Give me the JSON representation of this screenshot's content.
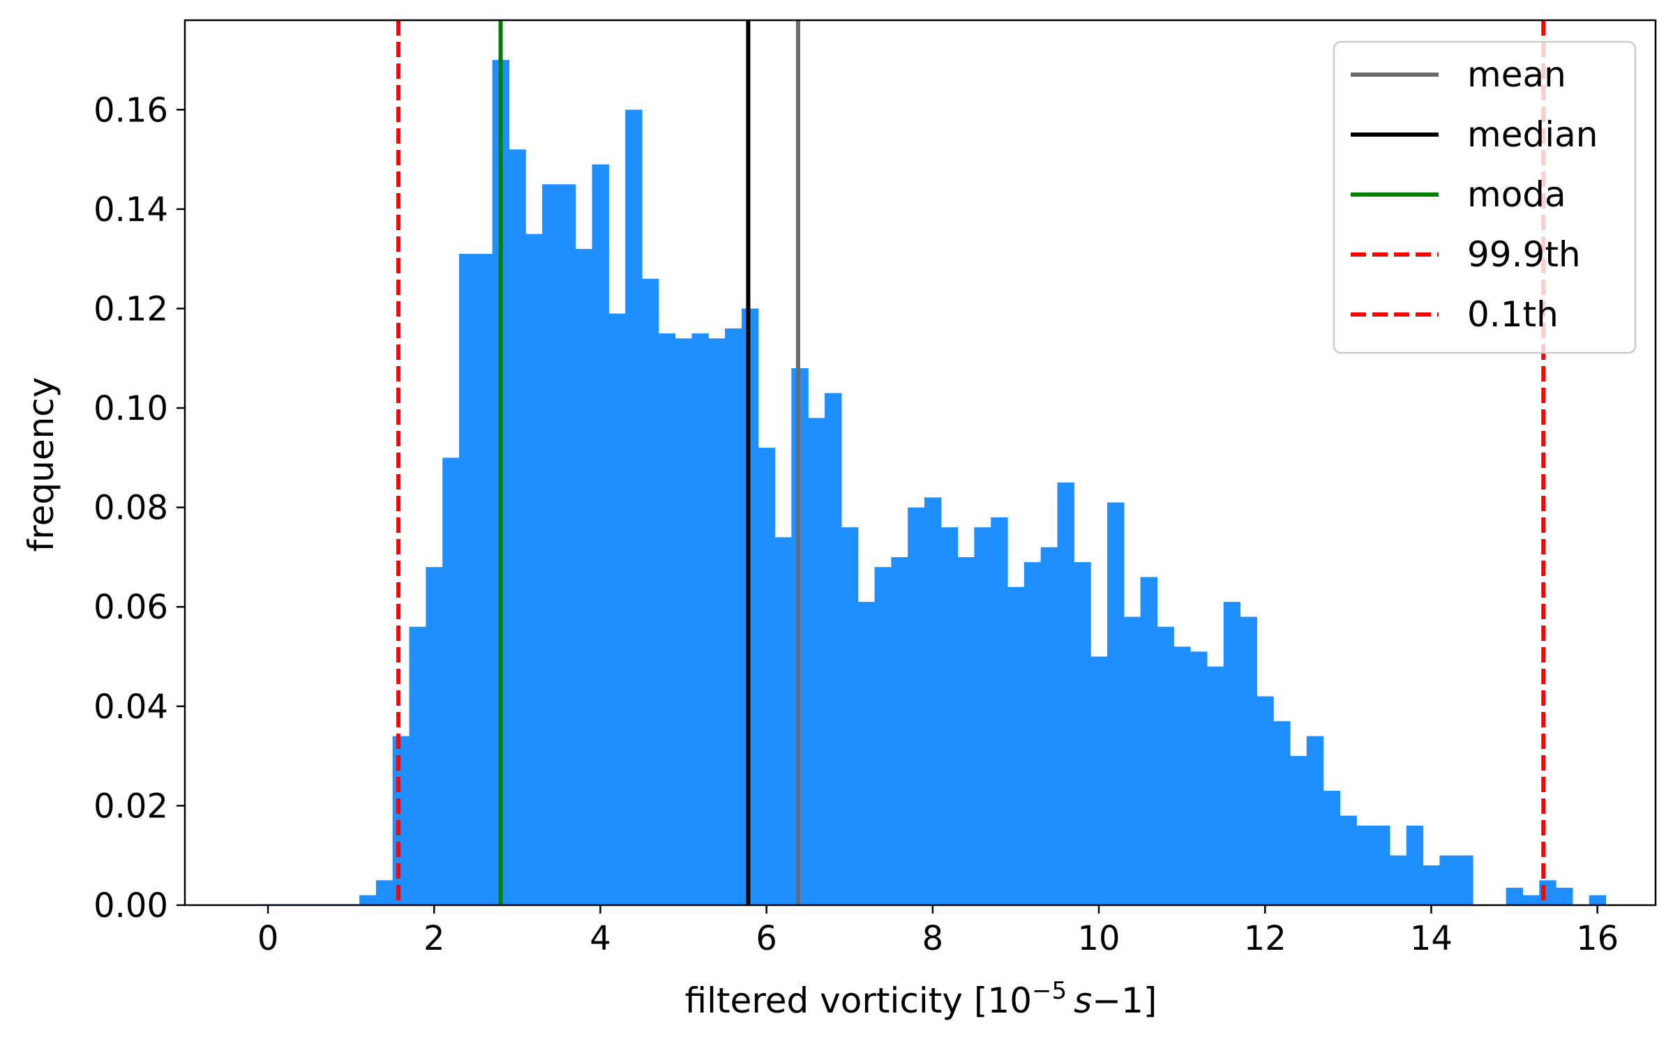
{
  "chart_data": {
    "type": "bar",
    "xlabel": {
      "prefix": "filtered vorticity [10",
      "exponent": "−5",
      "unit": "s",
      "suffix": "−1]"
    },
    "ylabel": "frequency",
    "xlim": [
      -1,
      16.7
    ],
    "ylim": [
      0,
      0.178
    ],
    "xticks": [
      0,
      2,
      4,
      6,
      8,
      10,
      12,
      14,
      16
    ],
    "xtick_labels": [
      "0",
      "2",
      "4",
      "6",
      "8",
      "10",
      "12",
      "14",
      "16"
    ],
    "yticks": [
      0.0,
      0.02,
      0.04,
      0.06,
      0.08,
      0.1,
      0.12,
      0.14,
      0.16
    ],
    "ytick_labels": [
      "0.00",
      "0.02",
      "0.04",
      "0.06",
      "0.08",
      "0.10",
      "0.12",
      "0.14",
      "0.16"
    ],
    "grid": false,
    "legend_position": "top-right",
    "bar_color": "#1f8fff",
    "bin_edges_start": -0.1,
    "bin_width": 0.2,
    "values": [
      0.0002,
      0.0002,
      0.0002,
      0.0002,
      0.0002,
      0.0002,
      0.002,
      0.005,
      0.034,
      0.056,
      0.068,
      0.09,
      0.131,
      0.131,
      0.17,
      0.152,
      0.135,
      0.145,
      0.145,
      0.132,
      0.149,
      0.119,
      0.16,
      0.126,
      0.115,
      0.114,
      0.115,
      0.114,
      0.116,
      0.12,
      0.092,
      0.074,
      0.108,
      0.098,
      0.103,
      0.076,
      0.061,
      0.068,
      0.07,
      0.08,
      0.082,
      0.076,
      0.07,
      0.076,
      0.078,
      0.064,
      0.069,
      0.072,
      0.085,
      0.069,
      0.05,
      0.081,
      0.058,
      0.066,
      0.056,
      0.052,
      0.051,
      0.048,
      0.061,
      0.058,
      0.042,
      0.037,
      0.03,
      0.034,
      0.023,
      0.018,
      0.016,
      0.016,
      0.01,
      0.016,
      0.008,
      0.01,
      0.01,
      0.0,
      0.0,
      0.0035,
      0.002,
      0.005,
      0.0035,
      0.0,
      0.002
    ],
    "vlines": [
      {
        "name": "mean",
        "x": 6.38,
        "color": "#6b6b6b",
        "style": "solid"
      },
      {
        "name": "median",
        "x": 5.78,
        "color": "#000000",
        "style": "solid"
      },
      {
        "name": "moda",
        "x": 2.8,
        "color": "#007f00",
        "style": "solid"
      },
      {
        "name": "99.9th",
        "x": 1.57,
        "color": "#ff0000",
        "style": "dashed"
      },
      {
        "name": "0.1th",
        "x": 15.35,
        "color": "#ff0000",
        "style": "dashed"
      }
    ]
  }
}
